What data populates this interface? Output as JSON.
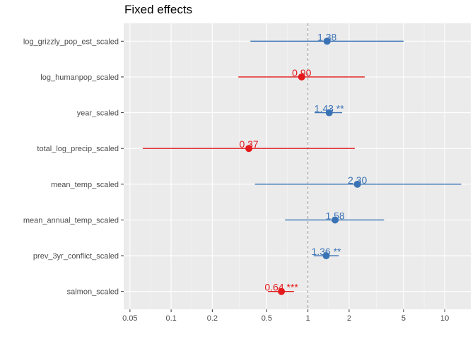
{
  "chart_data": {
    "type": "forest",
    "title": "Fixed effects",
    "xscale": "log",
    "xlim": [
      0.045,
      15.5
    ],
    "xticks": [
      0.05,
      0.1,
      0.2,
      0.5,
      1,
      2,
      5,
      10
    ],
    "xtick_labels": [
      "0.05",
      "0.1",
      "0.2",
      "0.5",
      "1",
      "2",
      "5",
      "10"
    ],
    "reference_line": 1,
    "grid": "on",
    "colors": {
      "positive": "#3a73b5",
      "negative": "#e41a1c",
      "panel": "#ebebeb",
      "grid": "#ffffff",
      "ref_line": "#9a9a9a"
    },
    "rows": [
      {
        "term": "log_grizzly_pop_est_scaled",
        "estimate": 1.38,
        "lower": 0.38,
        "upper": 5.0,
        "label": "1.38",
        "color": "#3a73b5"
      },
      {
        "term": "log_humanpop_scaled",
        "estimate": 0.9,
        "lower": 0.31,
        "upper": 2.6,
        "label": "0.90",
        "color": "#e41a1c"
      },
      {
        "term": "year_scaled",
        "estimate": 1.43,
        "lower": 1.12,
        "upper": 1.78,
        "label": "1.43 **",
        "color": "#3a73b5"
      },
      {
        "term": "total_log_precip_scaled",
        "estimate": 0.37,
        "lower": 0.062,
        "upper": 2.2,
        "label": "0.37",
        "color": "#e41a1c"
      },
      {
        "term": "mean_temp_scaled",
        "estimate": 2.3,
        "lower": 0.41,
        "upper": 13.2,
        "label": "2.30",
        "color": "#3a73b5"
      },
      {
        "term": "mean_annual_temp_scaled",
        "estimate": 1.58,
        "lower": 0.68,
        "upper": 3.6,
        "label": "1.58",
        "color": "#3a73b5"
      },
      {
        "term": "prev_3yr_conflict_scaled",
        "estimate": 1.36,
        "lower": 1.1,
        "upper": 1.68,
        "label": "1.36 **",
        "color": "#3a73b5"
      },
      {
        "term": "salmon_scaled",
        "estimate": 0.64,
        "lower": 0.51,
        "upper": 0.79,
        "label": "0.64 ***",
        "color": "#e41a1c"
      }
    ]
  }
}
